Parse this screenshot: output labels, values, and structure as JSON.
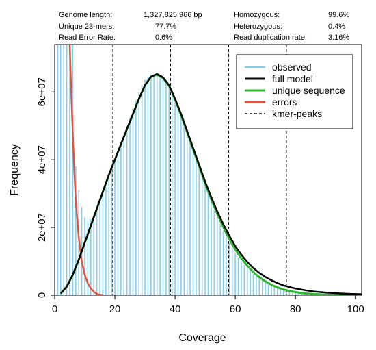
{
  "stats": {
    "left": [
      {
        "label": "Genome length:",
        "value": "1,327,825,966 bp"
      },
      {
        "label": "Unique 23-mers:",
        "value": "77.7%"
      },
      {
        "label": "Read Error Rate:",
        "value": "0.6%"
      }
    ],
    "right": [
      {
        "label": "Homozygous:",
        "value": "99.6%"
      },
      {
        "label": "Heterozygous:",
        "value": "0.4%"
      },
      {
        "label": "Read duplication rate:",
        "value": "3.16%"
      }
    ]
  },
  "chart_data": {
    "type": "line",
    "title": "",
    "xlabel": "Coverage",
    "ylabel": "Frequency",
    "xlim": [
      0,
      102
    ],
    "ylim": [
      0,
      74000000
    ],
    "x_ticks": [
      0,
      20,
      40,
      60,
      80,
      100
    ],
    "x_tick_labels": [
      "0",
      "20",
      "40",
      "60",
      "80",
      "100"
    ],
    "y_ticks": [
      0,
      20000000,
      40000000,
      60000000
    ],
    "y_tick_labels": [
      "0",
      "2e+07",
      "4e+07",
      "6e+07"
    ],
    "grid": false,
    "legend_position": "top-right",
    "colors": {
      "observed": "#87CEEB",
      "full_model": "#000000",
      "unique_sequence": "#2EB82E",
      "errors": "#E8503A",
      "kmer_peaks": "#000000"
    },
    "legend": [
      {
        "key": "observed",
        "label": "observed",
        "style": "solid"
      },
      {
        "key": "full_model",
        "label": "full model",
        "style": "solid"
      },
      {
        "key": "unique_sequence",
        "label": "unique sequence",
        "style": "solid"
      },
      {
        "key": "errors",
        "label": "errors",
        "style": "solid"
      },
      {
        "key": "kmer_peaks",
        "label": "kmer-peaks",
        "style": "dashed"
      }
    ],
    "kmer_peaks": [
      19.3,
      38.5,
      57.8,
      77.0
    ],
    "observed": {
      "x": [
        1,
        2,
        3,
        4,
        5,
        6,
        7,
        8,
        9,
        10,
        11,
        12,
        13,
        14,
        15,
        16,
        17,
        18,
        19,
        20,
        21,
        22,
        23,
        24,
        25,
        26,
        27,
        28,
        29,
        30,
        31,
        32,
        33,
        34,
        35,
        36,
        37,
        38,
        39,
        40,
        41,
        42,
        43,
        44,
        45,
        46,
        47,
        48,
        49,
        50,
        51,
        52,
        53,
        54,
        55,
        56,
        57,
        58,
        59,
        60,
        61,
        62,
        63,
        64,
        65,
        66,
        67,
        68,
        69,
        70,
        71,
        72,
        73,
        74,
        75,
        76,
        77,
        78,
        79,
        80,
        81,
        82,
        83,
        84,
        85,
        86,
        87,
        88,
        89,
        90,
        91,
        92,
        93,
        94,
        95,
        96,
        97,
        98,
        99,
        100
      ],
      "y": [
        74000000,
        74000000,
        74000000,
        74000000,
        74000000,
        74000000,
        38000000,
        31000000,
        26000000,
        23000000,
        22000000,
        22500000,
        24000000,
        26000000,
        28000000,
        30000000,
        32000000,
        34500000,
        37000000,
        40000000,
        42500000,
        45000000,
        47500000,
        50000000,
        52500000,
        55000000,
        57500000,
        60000000,
        62000000,
        63500000,
        64500000,
        65000000,
        65300000,
        65300000,
        65000000,
        64000000,
        62500000,
        61000000,
        59000000,
        57000000,
        55000000,
        52500000,
        50000000,
        47500000,
        45000000,
        42500000,
        40000000,
        37500000,
        35000000,
        32500000,
        30000000,
        27500000,
        25000000,
        23000000,
        21000000,
        19000000,
        17200000,
        15500000,
        14000000,
        12500000,
        11200000,
        10000000,
        9000000,
        8000000,
        7100000,
        6300000,
        5600000,
        5000000,
        4400000,
        3900000,
        3500000,
        3100000,
        2800000,
        2500000,
        2200000,
        2000000,
        1800000,
        1600000,
        1450000,
        1300000,
        1150000,
        1050000,
        950000,
        850000,
        760000,
        690000,
        620000,
        560000,
        500000,
        450000,
        400000,
        360000,
        320000,
        290000,
        260000,
        240000,
        220000,
        200000,
        180000,
        160000
      ]
    },
    "full_model": {
      "x": [
        2,
        4,
        6,
        8,
        10,
        12,
        14,
        16,
        18,
        20,
        22,
        24,
        26,
        28,
        30,
        32,
        34,
        36,
        38,
        40,
        42,
        44,
        46,
        48,
        50,
        52,
        54,
        56,
        58,
        60,
        62,
        64,
        66,
        68,
        70,
        72,
        74,
        76,
        78,
        80,
        82,
        84,
        86,
        88,
        90,
        92,
        94,
        96,
        98,
        100,
        102
      ],
      "y": [
        500000,
        2500000,
        6000000,
        10500000,
        15500000,
        20500000,
        25500000,
        30500000,
        35500000,
        40000000,
        44500000,
        49000000,
        53500000,
        58000000,
        62000000,
        64500000,
        65300000,
        64300000,
        62000000,
        58000000,
        53500000,
        48500000,
        43500000,
        38500000,
        33500000,
        29000000,
        24800000,
        21000000,
        17600000,
        14500000,
        12000000,
        9800000,
        8000000,
        6600000,
        5400000,
        4400000,
        3600000,
        2900000,
        2400000,
        2000000,
        1650000,
        1350000,
        1100000,
        920000,
        780000,
        650000,
        550000,
        460000,
        390000,
        330000,
        280000
      ]
    },
    "unique_sequence": {
      "x": [
        2,
        4,
        6,
        8,
        10,
        12,
        14,
        16,
        18,
        20,
        22,
        24,
        26,
        28,
        30,
        32,
        34,
        36,
        38,
        40,
        42,
        44,
        46,
        48,
        50,
        52,
        54,
        56,
        58,
        60,
        62,
        64,
        66,
        68,
        70,
        72,
        74,
        76,
        78,
        80,
        82,
        84,
        86,
        88,
        90,
        92,
        94,
        96,
        98,
        100,
        102
      ],
      "y": [
        500000,
        2500000,
        6000000,
        10500000,
        15500000,
        20500000,
        25500000,
        30500000,
        35500000,
        40000000,
        44500000,
        49000000,
        53500000,
        58000000,
        62000000,
        64500000,
        65100000,
        64100000,
        61800000,
        57700000,
        53100000,
        48100000,
        43000000,
        38000000,
        32900000,
        28300000,
        24000000,
        20100000,
        16600000,
        13500000,
        10900000,
        8700000,
        6800000,
        5300000,
        4100000,
        3100000,
        2300000,
        1700000,
        1250000,
        900000,
        650000,
        460000,
        320000,
        220000,
        150000,
        100000,
        70000,
        45000,
        30000,
        20000,
        12000
      ]
    },
    "errors": {
      "x": [
        5,
        5.5,
        6,
        6.5,
        7,
        8,
        9,
        10,
        11,
        12,
        13,
        14,
        15,
        16
      ],
      "y": [
        74000000,
        60000000,
        48000000,
        37000000,
        28000000,
        17000000,
        10000000,
        6000000,
        3500000,
        2000000,
        1000000,
        400000,
        150000,
        50000
      ]
    }
  }
}
